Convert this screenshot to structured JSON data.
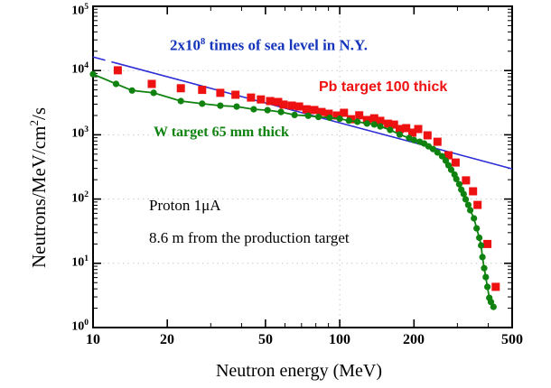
{
  "chart_data": {
    "type": "scatter",
    "title": "",
    "xlabel": "Neutron energy (MeV)",
    "ylabel": "Neutrons/MeV/cm2/s",
    "ylabel_parts": {
      "prefix": "Neutrons/MeV/cm",
      "exponent": "2",
      "suffix": "/s"
    },
    "xscale": "log",
    "yscale": "log",
    "xlim": [
      10,
      500
    ],
    "ylim": [
      1,
      100000
    ],
    "x_ticks": [
      10,
      20,
      50,
      100,
      200,
      500
    ],
    "x_tick_labels": [
      "10",
      "20",
      "50",
      "100",
      "200",
      "500"
    ],
    "x_minor_ticks": [
      30,
      40,
      60,
      70,
      80,
      90,
      300,
      400
    ],
    "y_tick_base": "10",
    "y_tick_exponents": [
      5,
      4,
      3,
      2,
      1,
      0
    ],
    "grid": {
      "horizontal_decades": [
        10,
        100,
        1000,
        10000
      ],
      "vertical": [
        100
      ],
      "style": "dotted light gray",
      "color": "#c9c9c9"
    },
    "legend_position": "annotations inside plot",
    "series": [
      {
        "id": "sea_level_line",
        "label": "2x10^8 times of sea level in N.Y.",
        "type": "line",
        "color": "#2e2ed6",
        "points": [
          [
            10,
            16300
          ],
          [
            500,
            295
          ]
        ]
      },
      {
        "id": "pb_target",
        "label": "Pb target 100 thick",
        "type": "scatter",
        "marker": "square",
        "color": "#ee1111",
        "points": [
          [
            12.6,
            10100
          ],
          [
            17.3,
            6200
          ],
          [
            22.7,
            5300
          ],
          [
            27.7,
            5000
          ],
          [
            32.8,
            4500
          ],
          [
            37.8,
            4200
          ],
          [
            43.7,
            3800
          ],
          [
            47.9,
            3550
          ],
          [
            52.2,
            3350
          ],
          [
            56.3,
            3250
          ],
          [
            59.2,
            2950
          ],
          [
            63.9,
            2850
          ],
          [
            68.4,
            2760
          ],
          [
            73.3,
            2500
          ],
          [
            78.9,
            2430
          ],
          [
            84.4,
            2270
          ],
          [
            90.2,
            2130
          ],
          [
            97.5,
            2000
          ],
          [
            104,
            2200
          ],
          [
            111,
            1750
          ],
          [
            120,
            2010
          ],
          [
            129,
            1700
          ],
          [
            138,
            1810
          ],
          [
            146,
            1650
          ],
          [
            157,
            1490
          ],
          [
            166,
            1440
          ],
          [
            175,
            1230
          ],
          [
            186,
            1270
          ],
          [
            197,
            1080
          ],
          [
            208,
            1230
          ],
          [
            227,
            980
          ],
          [
            249,
            780
          ],
          [
            276,
            480
          ],
          [
            295,
            370
          ],
          [
            325,
            195
          ],
          [
            347,
            132
          ],
          [
            362,
            81
          ],
          [
            397,
            20
          ],
          [
            429,
            4.3
          ]
        ]
      },
      {
        "id": "w_target",
        "label": "W target 65 mm thick",
        "type": "line+circles",
        "marker": "circle",
        "color": "#0f820f",
        "points": [
          [
            10,
            8800
          ],
          [
            12.4,
            6200
          ],
          [
            14.4,
            4900
          ],
          [
            17.6,
            4500
          ],
          [
            22.7,
            3350
          ],
          [
            27.7,
            3050
          ],
          [
            32.8,
            2840
          ],
          [
            38.2,
            2750
          ],
          [
            44.8,
            2500
          ],
          [
            51,
            2420
          ],
          [
            57.8,
            2270
          ],
          [
            65.6,
            2040
          ],
          [
            74.5,
            1980
          ],
          [
            82,
            1900
          ],
          [
            91,
            1840
          ],
          [
            100,
            1780
          ],
          [
            109,
            1660
          ],
          [
            118,
            1600
          ],
          [
            129,
            1500
          ],
          [
            138,
            1450
          ],
          [
            146,
            1350
          ],
          [
            160,
            1190
          ],
          [
            175,
            1010
          ],
          [
            191,
            890
          ],
          [
            200,
            830
          ],
          [
            211,
            780
          ],
          [
            220,
            730
          ],
          [
            229,
            660
          ],
          [
            239,
            600
          ],
          [
            249,
            530
          ],
          [
            260,
            465
          ],
          [
            269,
            395
          ],
          [
            276,
            335
          ],
          [
            283,
            285
          ],
          [
            292,
            240
          ],
          [
            297,
            205
          ],
          [
            305,
            170
          ],
          [
            311,
            140
          ],
          [
            318,
            120
          ],
          [
            324,
            99
          ],
          [
            332,
            81
          ],
          [
            338,
            67
          ],
          [
            350,
            50
          ],
          [
            359,
            35
          ],
          [
            368,
            25
          ],
          [
            374,
            19
          ],
          [
            379,
            12.5
          ],
          [
            385,
            8.4
          ],
          [
            391,
            6.1
          ],
          [
            397,
            4.3
          ],
          [
            404,
            2.9
          ],
          [
            410,
            2.5
          ],
          [
            420,
            2.1
          ]
        ]
      }
    ],
    "annotations": {
      "sea_level": {
        "prefix": "2x10",
        "exponent": "8",
        "suffix": " times of sea level in N.Y.",
        "color": "#1535bb"
      },
      "pb_target": {
        "text": "Pb target 100 thick",
        "color": "#ee1111"
      },
      "w_target": {
        "text": "W target 65 mm thick",
        "color": "#0f820f"
      },
      "proton": {
        "text": "Proton 1μA",
        "color": "#000000"
      },
      "distance": {
        "text": "8.6 m from the production target",
        "color": "#000000"
      }
    }
  }
}
